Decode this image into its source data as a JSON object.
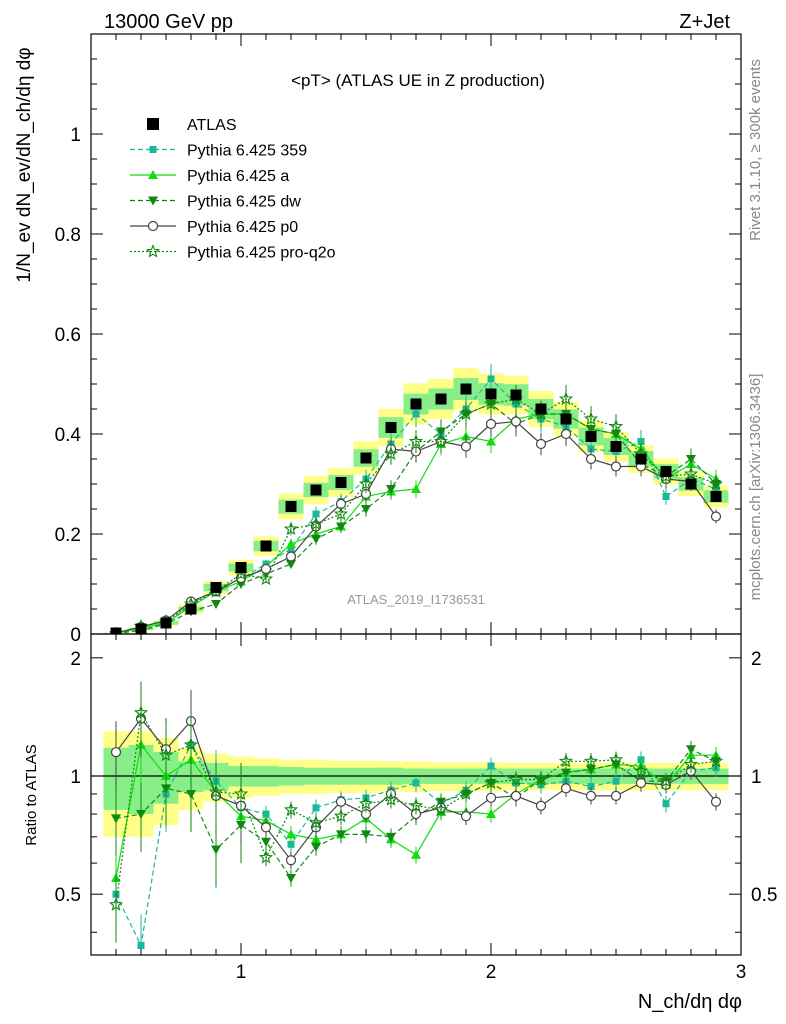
{
  "header": {
    "left": "13000 GeV pp",
    "right": "Z+Jet"
  },
  "side_text": {
    "rivet": "Rivet 3.1.10, ≥ 300k events",
    "mcplots": "mcplots.cern.ch [arXiv:1306.3436]"
  },
  "chart_data": {
    "type": "line",
    "title": "<pT> (ATLAS UE in Z production)",
    "analysis_id": "ATLAS_2019_I1736531",
    "xlabel": "N_ch/dη dφ",
    "ylabel": "1/N_ev dN_ev/dN_ch/dη dφ",
    "ratio_ylabel": "Ratio to ATLAS",
    "xlim": [
      0.4,
      3.0
    ],
    "ylim": [
      0,
      1.2
    ],
    "ratio_ylim": [
      0.35,
      2.3
    ],
    "ratio_scale": "log",
    "x_ticks": [
      "1",
      "2",
      "3"
    ],
    "y_ticks": [
      "0",
      "0.2",
      "0.4",
      "0.6",
      "0.8",
      "1"
    ],
    "ratio_ticks": [
      "0.5",
      "1",
      "2"
    ],
    "legend_position": "top-left",
    "x": [
      0.5,
      0.6,
      0.7,
      0.8,
      0.9,
      1.0,
      1.1,
      1.2,
      1.3,
      1.4,
      1.5,
      1.6,
      1.7,
      1.8,
      1.9,
      2.0,
      2.1,
      2.2,
      2.3,
      2.4,
      2.5,
      2.6,
      2.7,
      2.8,
      2.9
    ],
    "data": {
      "name": "ATLAS",
      "values": [
        0.002,
        0.01,
        0.022,
        0.05,
        0.093,
        0.133,
        0.176,
        0.255,
        0.288,
        0.303,
        0.352,
        0.413,
        0.46,
        0.47,
        0.49,
        0.48,
        0.478,
        0.45,
        0.43,
        0.395,
        0.375,
        0.35,
        0.325,
        0.3,
        0.275
      ],
      "uncertainty_inner": [
        0.18,
        0.2,
        0.15,
        0.09,
        0.08,
        0.06,
        0.06,
        0.055,
        0.05,
        0.05,
        0.05,
        0.05,
        0.045,
        0.045,
        0.045,
        0.045,
        0.045,
        0.045,
        0.045,
        0.045,
        0.045,
        0.045,
        0.045,
        0.045,
        0.045
      ],
      "uncertainty_outer": [
        0.3,
        0.3,
        0.25,
        0.18,
        0.14,
        0.12,
        0.11,
        0.1,
        0.1,
        0.095,
        0.095,
        0.09,
        0.09,
        0.085,
        0.085,
        0.085,
        0.08,
        0.08,
        0.08,
        0.08,
        0.08,
        0.08,
        0.08,
        0.08,
        0.08
      ]
    },
    "series": [
      {
        "name": "Pythia 6.425 359",
        "color": "#1ab89a",
        "dash": "5,3",
        "marker": "square-small",
        "values": [
          0.001,
          0.007,
          0.02,
          0.06,
          0.09,
          0.11,
          0.14,
          0.17,
          0.24,
          0.265,
          0.31,
          0.38,
          0.44,
          0.4,
          0.45,
          0.51,
          0.46,
          0.43,
          0.415,
          0.37,
          0.365,
          0.385,
          0.275,
          0.31,
          0.29
        ],
        "ratio": [
          0.5,
          0.37,
          0.9,
          1.2,
          0.97,
          0.83,
          0.8,
          0.67,
          0.83,
          0.87,
          0.88,
          0.92,
          0.96,
          0.85,
          0.92,
          1.06,
          0.96,
          0.95,
          0.97,
          0.94,
          0.97,
          1.1,
          0.85,
          1.03,
          1.05
        ]
      },
      {
        "name": "Pythia 6.425 a",
        "color": "#11dd11",
        "dash": "",
        "marker": "triangle-up",
        "values": [
          0.002,
          0.012,
          0.022,
          0.055,
          0.085,
          0.105,
          0.135,
          0.18,
          0.2,
          0.215,
          0.275,
          0.285,
          0.29,
          0.38,
          0.395,
          0.385,
          0.43,
          0.44,
          0.44,
          0.41,
          0.4,
          0.37,
          0.31,
          0.34,
          0.31
        ],
        "ratio": [
          0.55,
          1.2,
          1.0,
          1.1,
          0.91,
          0.79,
          0.77,
          0.71,
          0.69,
          0.71,
          0.78,
          0.69,
          0.63,
          0.81,
          0.81,
          0.8,
          0.9,
          0.98,
          1.02,
          1.04,
          1.07,
          1.06,
          0.95,
          1.13,
          1.13
        ]
      },
      {
        "name": "Pythia 6.425 dw",
        "color": "#118811",
        "dash": "5,3",
        "marker": "triangle-down",
        "values": [
          0.0015,
          0.008,
          0.02,
          0.045,
          0.06,
          0.1,
          0.12,
          0.14,
          0.19,
          0.215,
          0.25,
          0.29,
          0.365,
          0.405,
          0.44,
          0.46,
          0.42,
          0.44,
          0.44,
          0.41,
          0.4,
          0.34,
          0.315,
          0.35,
          0.3
        ],
        "ratio": [
          0.78,
          0.8,
          0.93,
          0.9,
          0.65,
          0.75,
          0.68,
          0.55,
          0.66,
          0.71,
          0.71,
          0.7,
          0.79,
          0.86,
          0.9,
          0.96,
          0.88,
          0.98,
          1.02,
          1.04,
          1.07,
          0.97,
          0.97,
          1.17,
          1.09
        ]
      },
      {
        "name": "Pythia 6.425 p0",
        "color": "#444444",
        "dash": "",
        "marker": "circle-open",
        "values": [
          0.0025,
          0.014,
          0.027,
          0.065,
          0.085,
          0.112,
          0.13,
          0.155,
          0.215,
          0.26,
          0.28,
          0.37,
          0.365,
          0.385,
          0.375,
          0.42,
          0.425,
          0.38,
          0.4,
          0.35,
          0.335,
          0.335,
          0.31,
          0.305,
          0.235
        ],
        "ratio": [
          1.15,
          1.4,
          1.17,
          1.38,
          0.89,
          0.84,
          0.74,
          0.61,
          0.74,
          0.86,
          0.8,
          0.9,
          0.8,
          0.83,
          0.79,
          0.88,
          0.89,
          0.84,
          0.93,
          0.89,
          0.89,
          0.96,
          0.95,
          1.03,
          0.86
        ]
      },
      {
        "name": "Pythia 6.425 pro-q2o",
        "color": "#118811",
        "dash": "2,2",
        "marker": "star-open",
        "values": [
          0.0005,
          0.015,
          0.025,
          0.06,
          0.085,
          0.12,
          0.11,
          0.21,
          0.22,
          0.24,
          0.3,
          0.36,
          0.385,
          0.385,
          0.44,
          0.46,
          0.47,
          0.44,
          0.47,
          0.43,
          0.415,
          0.36,
          0.315,
          0.32,
          0.3
        ],
        "ratio": [
          0.47,
          1.45,
          1.13,
          1.2,
          0.91,
          0.9,
          0.62,
          0.82,
          0.76,
          0.79,
          0.85,
          0.87,
          0.84,
          0.82,
          0.9,
          0.96,
          0.98,
          0.98,
          1.09,
          1.09,
          1.1,
          1.03,
          0.97,
          1.07,
          1.09
        ]
      }
    ]
  }
}
